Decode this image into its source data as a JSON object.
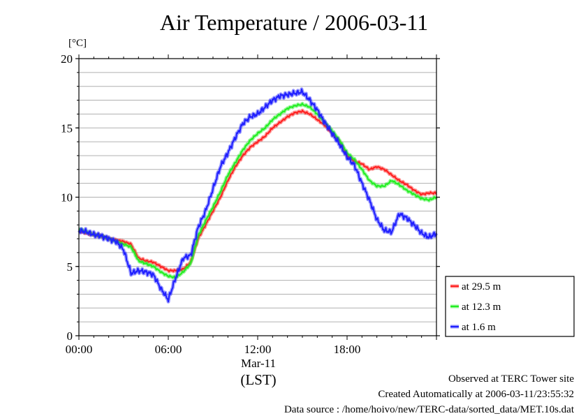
{
  "title": "Air Temperature / 2006-03-11",
  "chart_data": {
    "type": "line",
    "title": "Air Temperature / 2006-03-11",
    "ylabel": "[°C]",
    "xlabel": "(LST)",
    "x_sublabel": "Mar-11",
    "ylim": [
      0,
      20
    ],
    "xlim_hours": [
      0,
      24
    ],
    "y_ticks": [
      0,
      5,
      10,
      15,
      20
    ],
    "x_tick_labels": [
      "00:00",
      "06:00",
      "12:00",
      "18:00"
    ],
    "x_tick_hours": [
      0,
      6,
      12,
      18
    ],
    "grid": "horizontal, every 1 °C",
    "legend_position": "bottom-right, outside plot",
    "x_hours": [
      0,
      0.5,
      1,
      1.5,
      2,
      2.5,
      3,
      3.5,
      4,
      4.5,
      5,
      5.5,
      6,
      6.5,
      7,
      7.5,
      8,
      8.5,
      9,
      9.5,
      10,
      10.5,
      11,
      11.5,
      12,
      12.5,
      13,
      13.5,
      14,
      14.5,
      15,
      15.5,
      16,
      16.5,
      17,
      17.5,
      18,
      18.5,
      19,
      19.5,
      20,
      20.5,
      21,
      21.5,
      22,
      22.5,
      23,
      23.5,
      24
    ],
    "series": [
      {
        "name": "at 29.5 m",
        "color": "#ff2020",
        "values": [
          7.6,
          7.4,
          7.3,
          7.2,
          7.0,
          6.9,
          6.8,
          6.6,
          5.6,
          5.4,
          5.3,
          5.0,
          4.7,
          4.7,
          4.8,
          5.3,
          7.0,
          8.0,
          9.0,
          10.0,
          11.2,
          12.2,
          13.0,
          13.6,
          14.0,
          14.4,
          15.0,
          15.4,
          15.8,
          16.1,
          16.2,
          16.0,
          15.6,
          15.2,
          14.6,
          14.0,
          13.0,
          12.6,
          12.4,
          12.0,
          12.2,
          12.0,
          11.6,
          11.2,
          10.9,
          10.5,
          10.2,
          10.3,
          10.3
        ]
      },
      {
        "name": "at 12.3 m",
        "color": "#22ee22",
        "values": [
          7.7,
          7.5,
          7.3,
          7.2,
          7.0,
          6.8,
          6.6,
          6.4,
          5.4,
          5.2,
          5.0,
          4.6,
          4.3,
          4.2,
          4.6,
          5.2,
          7.2,
          8.3,
          9.3,
          10.4,
          11.6,
          12.5,
          13.4,
          14.1,
          14.6,
          15.0,
          15.6,
          16.0,
          16.4,
          16.6,
          16.7,
          16.5,
          16.0,
          15.4,
          14.8,
          14.1,
          13.2,
          12.7,
          12.0,
          11.2,
          10.8,
          10.8,
          11.2,
          10.9,
          10.5,
          10.2,
          9.9,
          9.8,
          10.0
        ]
      },
      {
        "name": "at 1.6 m",
        "color": "#2020ff",
        "values": [
          7.6,
          7.5,
          7.3,
          7.2,
          7.0,
          6.8,
          6.2,
          4.5,
          4.7,
          4.6,
          4.4,
          3.4,
          2.6,
          4.2,
          5.6,
          5.8,
          7.8,
          9.0,
          10.6,
          12.2,
          13.2,
          14.3,
          15.3,
          15.8,
          16.0,
          16.5,
          17.0,
          17.3,
          17.4,
          17.5,
          17.6,
          17.0,
          16.3,
          15.4,
          14.6,
          13.8,
          12.9,
          12.3,
          11.0,
          9.8,
          8.4,
          7.6,
          7.5,
          8.8,
          8.5,
          8.0,
          7.4,
          7.1,
          7.4
        ]
      }
    ]
  },
  "legend": [
    {
      "label": "at 29.5 m",
      "color": "#ff2020"
    },
    {
      "label": "at 12.3 m",
      "color": "#22ee22"
    },
    {
      "label": "at 1.6 m",
      "color": "#2020ff"
    }
  ],
  "footer": {
    "line1": "Observed at TERC Tower site",
    "line2": "Created Automatically at 2006-03-11/23:55:32",
    "line3": "Data source : /home/hoivo/new/TERC-data/sorted_data/MET.10s.dat"
  }
}
